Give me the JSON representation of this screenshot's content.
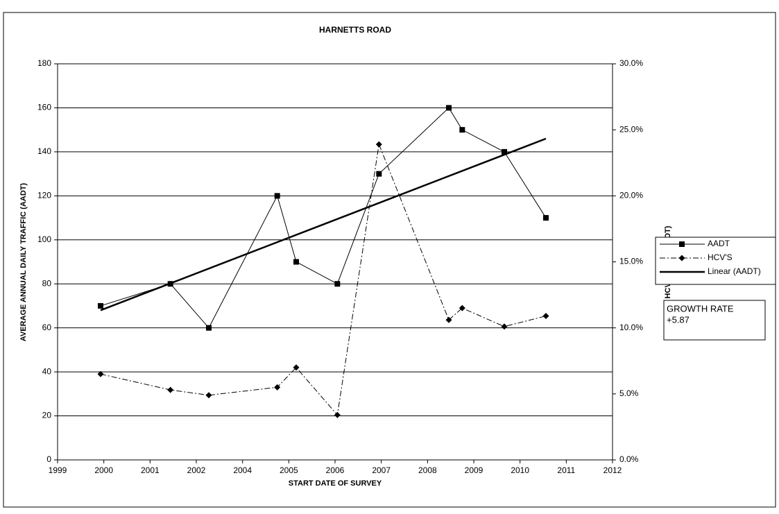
{
  "chart_data": {
    "type": "line",
    "title": "HARNETTS ROAD",
    "xlabel": "START DATE OF SURVEY",
    "ylabel": "AVERAGE ANNUAL DAILY TRAFFIC (AADT)",
    "y2label": "HCV'S (% OF AADT)",
    "xlim": [
      0,
      12
    ],
    "xticks": [
      {
        "value": 0,
        "label": "1999"
      },
      {
        "value": 1,
        "label": "2000"
      },
      {
        "value": 2,
        "label": "2001"
      },
      {
        "value": 3,
        "label": "2002"
      },
      {
        "value": 4,
        "label": "2004"
      },
      {
        "value": 5,
        "label": "2005"
      },
      {
        "value": 6,
        "label": "2006"
      },
      {
        "value": 7,
        "label": "2007"
      },
      {
        "value": 8,
        "label": "2008"
      },
      {
        "value": 9,
        "label": "2009"
      },
      {
        "value": 10,
        "label": "2010"
      },
      {
        "value": 11,
        "label": "2011"
      },
      {
        "value": 12,
        "label": "2012"
      }
    ],
    "ylim": [
      0,
      180
    ],
    "yticks": [
      0,
      20,
      40,
      60,
      80,
      100,
      120,
      140,
      160,
      180
    ],
    "y2lim": [
      0,
      30
    ],
    "y2ticks": [
      {
        "value": 0,
        "label": "0.0%"
      },
      {
        "value": 5,
        "label": "5.0%"
      },
      {
        "value": 10,
        "label": "10.0%"
      },
      {
        "value": 15,
        "label": "15.0%"
      },
      {
        "value": 20,
        "label": "20.0%"
      },
      {
        "value": 25,
        "label": "25.0%"
      },
      {
        "value": 30,
        "label": "30.0%"
      }
    ],
    "grid": true,
    "series": [
      {
        "name": "AADT",
        "color": "#000000",
        "marker": "square",
        "dash": "solid",
        "x": [
          0.93,
          2.44,
          3.27,
          4.75,
          5.16,
          6.05,
          6.95,
          8.46,
          8.75,
          9.66,
          10.56
        ],
        "values": [
          70,
          80,
          60,
          120,
          90,
          80,
          130,
          160,
          150,
          140,
          110
        ]
      },
      {
        "name": "HCV'S",
        "color": "#000000",
        "marker": "diamond",
        "dash": "dashdot",
        "axis": "y2",
        "x": [
          0.93,
          2.44,
          3.27,
          4.75,
          5.16,
          6.05,
          6.95,
          8.46,
          8.75,
          9.66,
          10.56
        ],
        "values": [
          6.5,
          5.3,
          4.9,
          5.5,
          7.0,
          3.4,
          23.9,
          10.6,
          11.5,
          10.1,
          10.9
        ]
      },
      {
        "name": "Linear (AADT)",
        "color": "#000000",
        "marker": "none",
        "dash": "thick",
        "x": [
          0.93,
          10.56
        ],
        "values": [
          68,
          146
        ]
      }
    ],
    "annotation": {
      "title": "GROWTH RATE",
      "value": "+5.87"
    }
  }
}
